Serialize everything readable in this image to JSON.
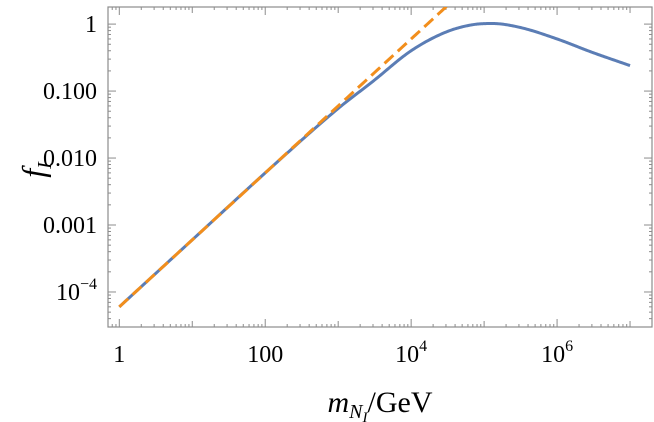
{
  "chart_data": {
    "type": "line",
    "title": "",
    "xlabel": "m_{N_I}/GeV",
    "ylabel": "f_I",
    "xlabel_parts": {
      "main": "m",
      "sub": "N",
      "subsub": "I",
      "unit": "/GeV"
    },
    "ylabel_parts": {
      "main": "f",
      "sub": "I"
    },
    "x_scale": "log",
    "y_scale": "log",
    "xlim": [
      0.7,
      20000000
    ],
    "ylim": [
      3e-05,
      1.8
    ],
    "grid": false,
    "legend": "none",
    "x_ticks": [
      {
        "value": 1,
        "base": "1",
        "exp": ""
      },
      {
        "value": 100,
        "base": "100",
        "exp": ""
      },
      {
        "value": 10000,
        "base": "10",
        "exp": "4"
      },
      {
        "value": 1000000,
        "base": "10",
        "exp": "6"
      }
    ],
    "y_ticks": [
      {
        "value": 0.0001,
        "base": "10",
        "exp": "−4"
      },
      {
        "value": 0.001,
        "base": "0.001",
        "exp": ""
      },
      {
        "value": 0.01,
        "base": "0.010",
        "exp": ""
      },
      {
        "value": 0.1,
        "base": "0.100",
        "exp": ""
      },
      {
        "value": 1,
        "base": "1",
        "exp": ""
      }
    ],
    "series": [
      {
        "style": "solid",
        "color": "#5b7db5",
        "x": [
          1,
          10,
          100,
          1000,
          3000,
          10000,
          30000,
          70000,
          130000,
          300000,
          1000000,
          3000000,
          10000000
        ],
        "y": [
          6e-05,
          0.0006,
          0.006,
          0.055,
          0.14,
          0.4,
          0.76,
          0.98,
          1.02,
          0.9,
          0.6,
          0.38,
          0.24
        ]
      },
      {
        "style": "dashed",
        "color": "#f28e1c",
        "x": [
          1,
          10,
          100,
          1000,
          10000,
          30000,
          60000
        ],
        "y": [
          6e-05,
          0.0006,
          0.006,
          0.06,
          0.6,
          1.8,
          3.6
        ]
      }
    ]
  }
}
